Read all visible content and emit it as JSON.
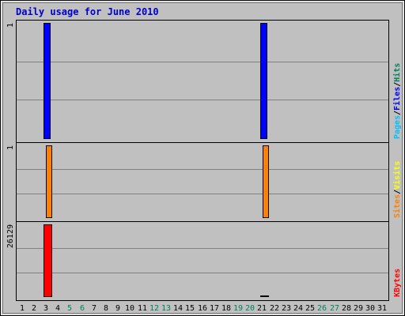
{
  "chart_data": {
    "type": "bar",
    "title": "Daily usage for June 2010",
    "days": [
      "1",
      "2",
      "3",
      "4",
      "5",
      "6",
      "7",
      "8",
      "9",
      "10",
      "11",
      "12",
      "13",
      "14",
      "15",
      "16",
      "17",
      "18",
      "19",
      "20",
      "21",
      "22",
      "23",
      "24",
      "25",
      "26",
      "27",
      "28",
      "29",
      "30",
      "31"
    ],
    "weekend_days": [
      "5",
      "6",
      "12",
      "13",
      "19",
      "20",
      "26",
      "27"
    ],
    "colors": {
      "background": "#c0c0c0",
      "title": "#0000cc",
      "grid": "#808080",
      "hits": "#00805c",
      "files": "#0000ff",
      "pages": "#00c0ff",
      "visits": "#ffff00",
      "sites": "#ff8000",
      "kbytes": "#ff0000",
      "weekend_label": "#00805c",
      "weekday_label": "#000000"
    },
    "panels": [
      {
        "id": "top",
        "scale_max_label": "1",
        "ymax": 1,
        "legend": [
          {
            "name": "Pages",
            "color": "#00c0ff"
          },
          {
            "name": "/",
            "color": "#000000"
          },
          {
            "name": "Files",
            "color": "#0000ff"
          },
          {
            "name": "/",
            "color": "#000000"
          },
          {
            "name": "Hits",
            "color": "#00805c"
          }
        ],
        "series": [
          {
            "name": "Hits",
            "color": "#00805c",
            "values": [
              0,
              0,
              1,
              0,
              0,
              0,
              0,
              0,
              0,
              0,
              0,
              0,
              0,
              0,
              0,
              0,
              0,
              0,
              0,
              0,
              1,
              0,
              0,
              0,
              0,
              0,
              0,
              0,
              0,
              0,
              0
            ]
          },
          {
            "name": "Files",
            "color": "#0000ff",
            "values": [
              0,
              0,
              1,
              0,
              0,
              0,
              0,
              0,
              0,
              0,
              0,
              0,
              0,
              0,
              0,
              0,
              0,
              0,
              0,
              0,
              1,
              0,
              0,
              0,
              0,
              0,
              0,
              0,
              0,
              0,
              0
            ]
          },
          {
            "name": "Pages",
            "color": "#00c0ff",
            "values": [
              0,
              0,
              0,
              0,
              0,
              0,
              0,
              0,
              0,
              0,
              0,
              0,
              0,
              0,
              0,
              0,
              0,
              0,
              0,
              0,
              0,
              0,
              0,
              0,
              0,
              0,
              0,
              0,
              0,
              0,
              0
            ]
          }
        ]
      },
      {
        "id": "middle",
        "scale_max_label": "1",
        "ymax": 1,
        "legend": [
          {
            "name": "Sites",
            "color": "#ff8000"
          },
          {
            "name": "/",
            "color": "#000000"
          },
          {
            "name": "Visits",
            "color": "#ffff00"
          }
        ],
        "series": [
          {
            "name": "Visits",
            "color": "#ffff00",
            "values": [
              0,
              0,
              0,
              0,
              0,
              0,
              0,
              0,
              0,
              0,
              0,
              0,
              0,
              0,
              0,
              0,
              0,
              0,
              0,
              0,
              0,
              0,
              0,
              0,
              0,
              0,
              0,
              0,
              0,
              0,
              0
            ]
          },
          {
            "name": "Sites",
            "color": "#ff8000",
            "values": [
              0,
              0,
              1,
              0,
              0,
              0,
              0,
              0,
              0,
              0,
              0,
              0,
              0,
              0,
              0,
              0,
              0,
              0,
              0,
              0,
              1,
              0,
              0,
              0,
              0,
              0,
              0,
              0,
              0,
              0,
              0
            ]
          }
        ]
      },
      {
        "id": "bottom",
        "scale_max_label": "26129",
        "ymax": 26129,
        "legend": [
          {
            "name": "KBytes",
            "color": "#ff0000"
          }
        ],
        "series": [
          {
            "name": "KBytes",
            "color": "#ff0000",
            "values": [
              0,
              0,
              26129,
              0,
              0,
              0,
              0,
              0,
              0,
              0,
              0,
              0,
              0,
              0,
              0,
              0,
              0,
              0,
              0,
              0,
              300,
              0,
              0,
              0,
              0,
              0,
              0,
              0,
              0,
              0,
              0
            ]
          }
        ]
      }
    ]
  }
}
